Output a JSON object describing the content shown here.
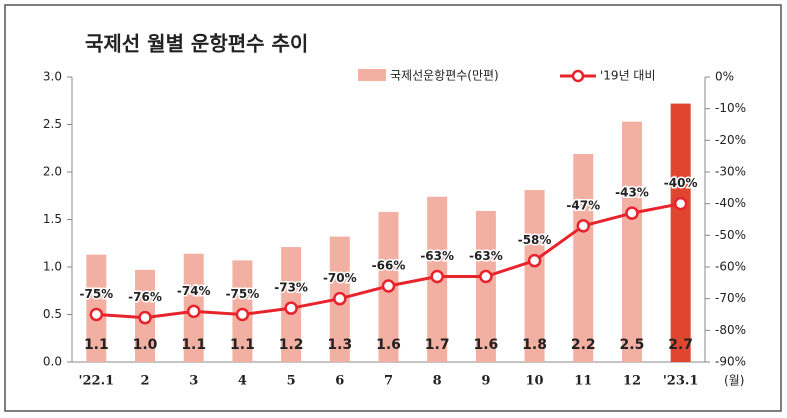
{
  "chart_data": {
    "type": "bar-line",
    "title": "국제선 월별 운항편수 추이",
    "x_label": "(월)",
    "categories": [
      "'22.1",
      "2",
      "3",
      "4",
      "5",
      "6",
      "7",
      "8",
      "9",
      "10",
      "11",
      "12",
      "'23.1"
    ],
    "series": [
      {
        "name": "국제선운항편수(만편)",
        "type": "bar",
        "color": "#f2b0a3",
        "colors": [
          "#f2b0a3",
          "#f2b0a3",
          "#f2b0a3",
          "#f2b0a3",
          "#f2b0a3",
          "#f2b0a3",
          "#f2b0a3",
          "#f2b0a3",
          "#f2b0a3",
          "#f2b0a3",
          "#f2b0a3",
          "#f2b0a3",
          "#e0452f"
        ],
        "values": [
          1.13,
          0.97,
          1.14,
          1.07,
          1.21,
          1.32,
          1.58,
          1.74,
          1.59,
          1.81,
          2.19,
          2.53,
          2.72
        ],
        "value_labels": [
          "1.1",
          "1.0",
          "1.1",
          "1.1",
          "1.2",
          "1.3",
          "1.6",
          "1.7",
          "1.6",
          "1.8",
          "2.2",
          "2.5",
          "2.7"
        ]
      },
      {
        "name": "'19년 대비",
        "type": "line",
        "axis": "y2",
        "color": "#e8232b",
        "values": [
          -75,
          -76,
          -74,
          -75,
          -73,
          -70,
          -66,
          -63,
          -63,
          -58,
          -47,
          -43,
          -40
        ],
        "value_labels": [
          "-75%",
          "-76%",
          "-74%",
          "-75%",
          "-73%",
          "-70%",
          "-66%",
          "-63%",
          "-63%",
          "-58%",
          "-47%",
          "-43%",
          "-40%"
        ]
      }
    ],
    "ylim": [
      0,
      3
    ],
    "yticks": [
      {
        "value": 0,
        "label": "0.0"
      },
      {
        "value": 0.5,
        "label": "0.5"
      },
      {
        "value": 1,
        "label": "1.0"
      },
      {
        "value": 1.5,
        "label": "1.5"
      },
      {
        "value": 2,
        "label": "2.0"
      },
      {
        "value": 2.5,
        "label": "2.5"
      },
      {
        "value": 3,
        "label": "3.0"
      }
    ],
    "y2lim": [
      -90,
      0
    ],
    "y2ticks": [
      {
        "value": 0,
        "label": "0%"
      },
      {
        "value": -10,
        "label": "-10%"
      },
      {
        "value": -20,
        "label": "-20%"
      },
      {
        "value": -30,
        "label": "-30%"
      },
      {
        "value": -40,
        "label": "-40%"
      },
      {
        "value": -50,
        "label": "-50%"
      },
      {
        "value": -60,
        "label": "-60%"
      },
      {
        "value": -70,
        "label": "-70%"
      },
      {
        "value": -80,
        "label": "-80%"
      },
      {
        "value": -90,
        "label": "-90%"
      }
    ],
    "legend": "top-right"
  }
}
